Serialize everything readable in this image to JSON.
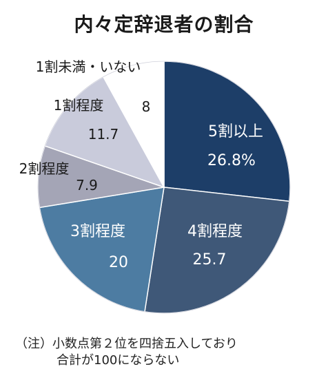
{
  "chart_data": {
    "type": "pie",
    "title": "内々定辞退者の割合",
    "start_angle_deg": 0,
    "direction": "clockwise",
    "slices": [
      {
        "label": "5割以上",
        "value": 26.8,
        "value_label": "26.8%",
        "color": "#1d3e68",
        "text_color": "#ffffff"
      },
      {
        "label": "4割程度",
        "value": 25.7,
        "value_label": "25.7",
        "color": "#3f5878",
        "text_color": "#ffffff"
      },
      {
        "label": "3割程度",
        "value": 20,
        "value_label": "20",
        "color": "#4d7ca2",
        "text_color": "#ffffff"
      },
      {
        "label": "2割程度",
        "value": 7.9,
        "value_label": "7.9",
        "color": "#a4a5b6",
        "text_color": "#1a1a1a"
      },
      {
        "label": "1割程度",
        "value": 11.7,
        "value_label": "11.7",
        "color": "#c9cbdb",
        "text_color": "#1a1a1a"
      },
      {
        "label": "1割未満・いない",
        "value": 8,
        "value_label": "8",
        "color": "#ffffff",
        "text_color": "#1a1a1a"
      }
    ]
  },
  "note": {
    "line1": "（注）小数点第２位を四捨五入しており",
    "line2": "合計が100にならない"
  }
}
